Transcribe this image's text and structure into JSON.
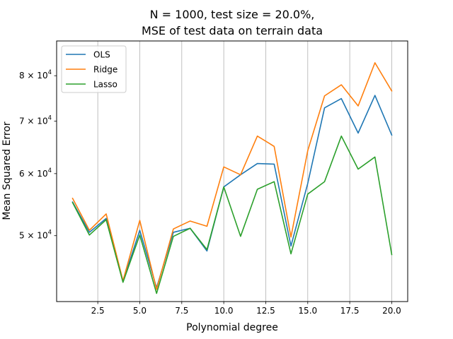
{
  "chart_data": {
    "type": "line",
    "title_line1": "N = 1000, test size = 20.0%,",
    "title_line2": "MSE of test data on terrain data",
    "xlabel": "Polynomial degree",
    "ylabel": "Mean Squared Error",
    "yscale": "log",
    "xlim": [
      0.05,
      20.95
    ],
    "ylim": [
      41200,
      88600
    ],
    "x_ticks": [
      2.5,
      5.0,
      7.5,
      10.0,
      12.5,
      15.0,
      17.5,
      20.0
    ],
    "x_tick_labels": [
      "2.5",
      "5.0",
      "7.5",
      "10.0",
      "12.5",
      "15.0",
      "17.5",
      "20.0"
    ],
    "y_ticks": [
      50000,
      60000,
      70000,
      80000
    ],
    "y_tick_labels": [
      {
        "base": "5 × 10",
        "exp": "4"
      },
      {
        "base": "6 × 10",
        "exp": "4"
      },
      {
        "base": "7 × 10",
        "exp": "4"
      },
      {
        "base": "8 × 10",
        "exp": "4"
      }
    ],
    "grid": "vertical",
    "legend_position": "top-left",
    "x": [
      1,
      2,
      3,
      4,
      5,
      6,
      7,
      8,
      9,
      10,
      11,
      12,
      13,
      14,
      15,
      16,
      17,
      18,
      19,
      20
    ],
    "series": [
      {
        "name": "OLS",
        "color": "#1f77b4",
        "values": [
          55200,
          50500,
          52600,
          43700,
          50800,
          42900,
          50500,
          51100,
          47800,
          57700,
          59800,
          61800,
          61700,
          48500,
          58300,
          72800,
          74800,
          67600,
          75500,
          67200
        ]
      },
      {
        "name": "Ridge",
        "color": "#ff7f0e",
        "values": [
          55800,
          50800,
          53300,
          43800,
          52300,
          42700,
          51000,
          52200,
          51400,
          61200,
          59800,
          67000,
          65000,
          49800,
          64200,
          75400,
          77900,
          73200,
          83100,
          76500
        ]
      },
      {
        "name": "Lasso",
        "color": "#2ca02c",
        "values": [
          55100,
          50100,
          52400,
          43600,
          50100,
          42200,
          49900,
          51100,
          48000,
          57700,
          49900,
          57300,
          58600,
          47400,
          56500,
          58600,
          67000,
          60800,
          63000,
          47300
        ]
      }
    ]
  }
}
